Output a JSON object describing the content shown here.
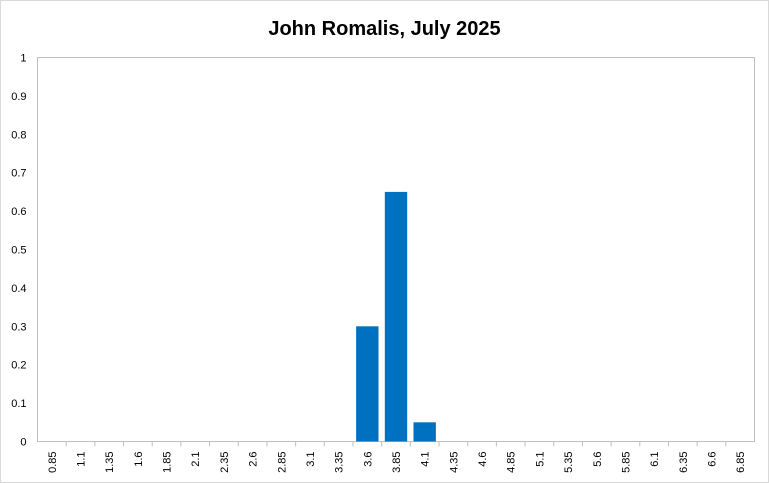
{
  "chart_data": {
    "type": "bar",
    "title": "John Romalis, July 2025",
    "xlabel": "",
    "ylabel": "",
    "categories": [
      "0.85",
      "1.1",
      "1.35",
      "1.6",
      "1.85",
      "2.1",
      "2.35",
      "2.6",
      "2.85",
      "3.1",
      "3.35",
      "3.6",
      "3.85",
      "4.1",
      "4.35",
      "4.6",
      "4.85",
      "5.1",
      "5.35",
      "5.6",
      "5.85",
      "6.1",
      "6.35",
      "6.6",
      "6.85"
    ],
    "values": [
      0,
      0,
      0,
      0,
      0,
      0,
      0,
      0,
      0,
      0,
      0,
      0.3,
      0.65,
      0.05,
      0,
      0,
      0,
      0,
      0,
      0,
      0,
      0,
      0,
      0,
      0
    ],
    "ylim": [
      0,
      1
    ],
    "yticks": [
      "0",
      "0.1",
      "0.2",
      "0.3",
      "0.4",
      "0.5",
      "0.6",
      "0.7",
      "0.8",
      "0.9",
      "1"
    ],
    "bar_color": "#0070C0",
    "grid": false,
    "legend": "none"
  }
}
